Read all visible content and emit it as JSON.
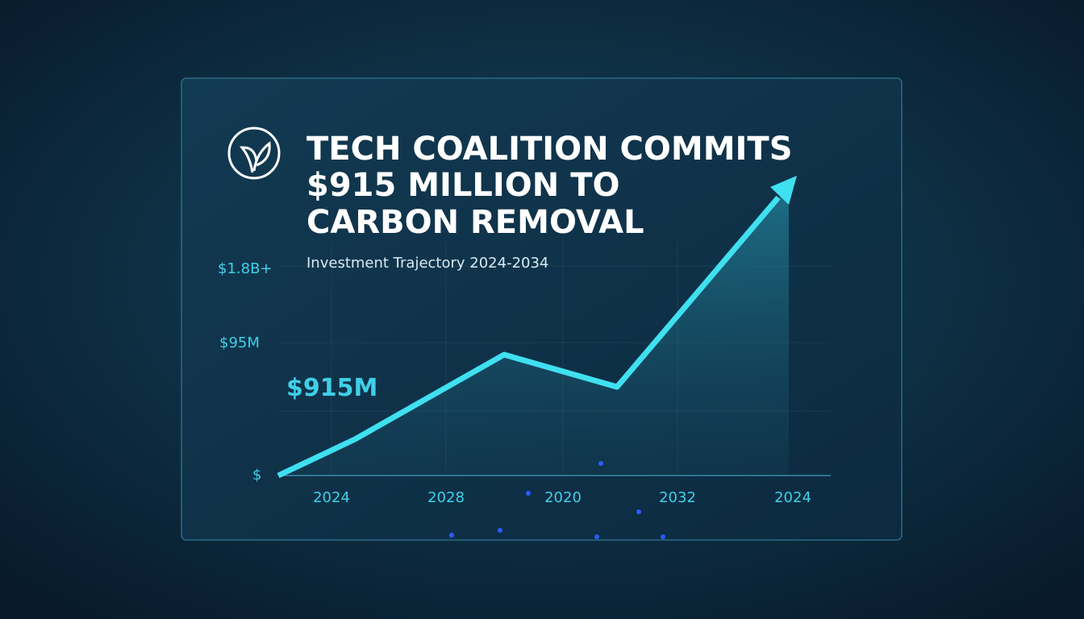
{
  "header": {
    "title_lines": [
      "TECH COALITION COMMITS",
      "$915 MILLION TO",
      "CARBON REMOVAL"
    ],
    "subtitle": "Investment Trajectory 2024-2034"
  },
  "chart": {
    "y_labels": [
      "$1.8B+",
      "$95M",
      "$"
    ],
    "highlight": "$915M",
    "x_labels": [
      "2024",
      "2028",
      "2020",
      "2032",
      "2024"
    ]
  }
}
